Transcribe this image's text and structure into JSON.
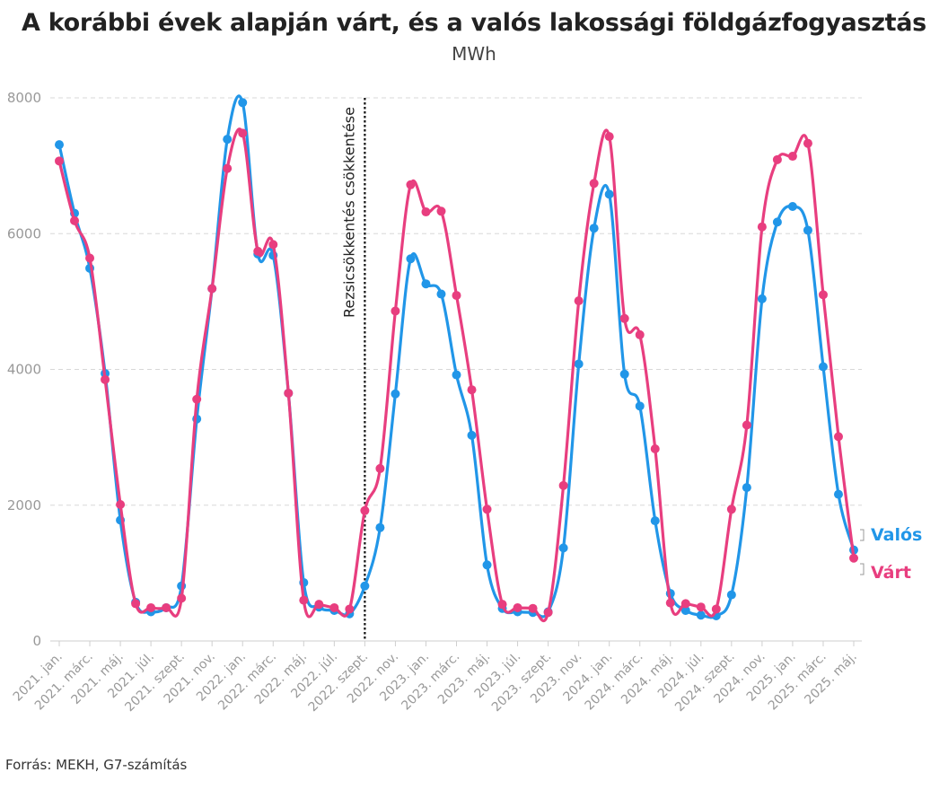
{
  "chart_data": {
    "type": "line",
    "title": "A korábbi évek alapján várt, és a valós lakossági földgázfogyasztás",
    "subtitle": "MWh",
    "source": "Forrás: MEKH, G7-számítás",
    "ylim": [
      0,
      8000
    ],
    "yticks": [
      0,
      2000,
      4000,
      6000,
      8000
    ],
    "grid": true,
    "x": [
      "2021. jan.",
      "2021. febr.",
      "2021. márc.",
      "2021. ápr.",
      "2021. máj.",
      "2021. jún.",
      "2021. júl.",
      "2021. aug.",
      "2021. szept.",
      "2021. okt.",
      "2021. nov.",
      "2021. dec.",
      "2022. jan.",
      "2022. febr.",
      "2022. márc.",
      "2022. ápr.",
      "2022. máj.",
      "2022. jún.",
      "2022. júl.",
      "2022. aug.",
      "2022. szept.",
      "2022. okt.",
      "2022. nov.",
      "2022. dec.",
      "2023. jan.",
      "2023. febr.",
      "2023. márc.",
      "2023. ápr.",
      "2023. máj.",
      "2023. jún.",
      "2023. júl.",
      "2023. aug.",
      "2023. szept.",
      "2023. okt.",
      "2023. nov.",
      "2023. dec.",
      "2024. jan.",
      "2024. febr.",
      "2024. márc.",
      "2024. ápr.",
      "2024. máj.",
      "2024. jún.",
      "2024. júl.",
      "2024. aug.",
      "2024. szept.",
      "2024. okt.",
      "2024. nov.",
      "2024. dec.",
      "2025. jan.",
      "2025. febr.",
      "2025. márc.",
      "2025. ápr.",
      "2025. máj."
    ],
    "xtick_labels": [
      "2021. jan.",
      "2021. márc.",
      "2021. máj.",
      "2021. júl.",
      "2021. szept.",
      "2021. nov.",
      "2022. jan.",
      "2022. márc.",
      "2022. máj.",
      "2022. júl.",
      "2022. szept.",
      "2022. nov.",
      "2023. jan.",
      "2023. márc.",
      "2023. máj.",
      "2023. júl.",
      "2023. szept.",
      "2023. nov.",
      "2024. jan.",
      "2024. márc.",
      "2024. máj.",
      "2024. júl.",
      "2024. szept.",
      "2024. nov.",
      "2025. jan.",
      "2025. márc.",
      "2025. máj."
    ],
    "series": [
      {
        "name": "Valós",
        "color": "#2196e8",
        "values": [
          7310,
          6300,
          5490,
          3940,
          1780,
          570,
          430,
          490,
          810,
          3270,
          5190,
          7390,
          7930,
          5700,
          5680,
          3650,
          860,
          500,
          450,
          400,
          810,
          1670,
          3640,
          5630,
          5260,
          5110,
          3920,
          3030,
          1120,
          480,
          430,
          420,
          430,
          1370,
          4080,
          6080,
          6580,
          3930,
          3460,
          1770,
          700,
          450,
          380,
          370,
          680,
          2260,
          5040,
          6170,
          6400,
          6050,
          4040,
          2160,
          1340
        ]
      },
      {
        "name": "Várt",
        "color": "#e83e7f",
        "values": [
          7070,
          6190,
          5640,
          3850,
          2010,
          550,
          490,
          490,
          630,
          3560,
          5190,
          6960,
          7480,
          5740,
          5840,
          3650,
          600,
          540,
          490,
          470,
          1920,
          2540,
          4860,
          6720,
          6320,
          6330,
          5090,
          3700,
          1940,
          540,
          490,
          480,
          420,
          2290,
          5010,
          6740,
          7430,
          4750,
          4510,
          2830,
          560,
          550,
          500,
          470,
          1940,
          3180,
          6100,
          7090,
          7140,
          7330,
          5100,
          3010,
          1220
        ]
      }
    ],
    "annotations": [
      {
        "text": "Rezsicsökkentés csökkentése",
        "x": "2022. aug."
      }
    ]
  }
}
